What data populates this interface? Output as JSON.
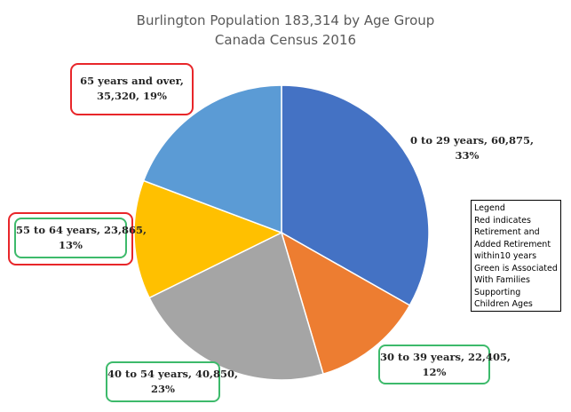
{
  "chart_data": {
    "type": "pie",
    "title": "Burlington Population 183,314 by Age Group",
    "subtitle": "Canada Census 2016",
    "slices": [
      {
        "label": "0 to 29 years",
        "value": 60875,
        "percent": "33%",
        "display_value": "60,875",
        "color": "#4472c4"
      },
      {
        "label": "30 to 39 years",
        "value": 22405,
        "percent": "12%",
        "display_value": "22,405",
        "color": "#ed7d31"
      },
      {
        "label": "40 to 54 years",
        "value": 40850,
        "percent": "23%",
        "display_value": "40,850",
        "color": "#a5a5a5"
      },
      {
        "label": "55 to 64 years",
        "value": 23865,
        "percent": "13%",
        "display_value": "23,865",
        "color": "#ffc000"
      },
      {
        "label": "65 years and over",
        "value": 35320,
        "percent": "19%",
        "display_value": "35,320",
        "color": "#5b9bd5"
      }
    ],
    "data_labels": [
      {
        "line1": "0 to 29 years, 60,875,",
        "line2": "33%"
      },
      {
        "line1": "30 to 39 years, 22,405,",
        "line2": "12%"
      },
      {
        "line1": "40 to 54 years, 40,850,",
        "line2": "23%"
      },
      {
        "line1": "55 to 64 years, 23,865,",
        "line2": "13%"
      },
      {
        "line1": "65 years and over,",
        "line2": "35,320, 19%"
      }
    ]
  },
  "legend": {
    "lines": [
      "Legend",
      "Red indicates",
      "Retirement and",
      "Added Retirement",
      "within10 years",
      "Green is Associated",
      "With Families",
      "Supporting",
      "Children Ages"
    ]
  },
  "colors": {
    "red_highlight": "#e8262a",
    "green_highlight": "#3dba6b"
  }
}
